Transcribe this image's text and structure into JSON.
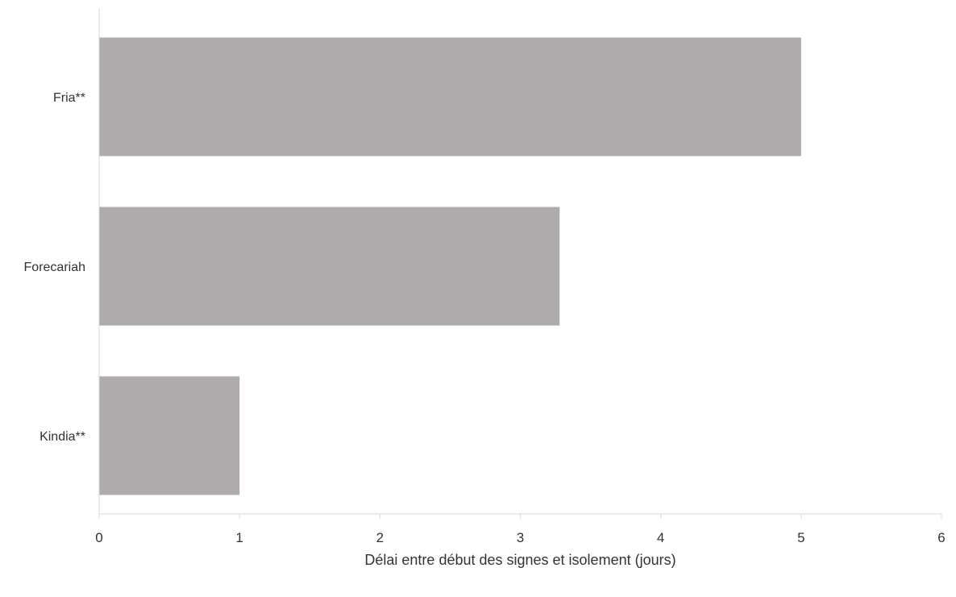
{
  "chart_data": {
    "type": "bar",
    "orientation": "horizontal",
    "title": "",
    "categories": [
      "Fria**",
      "Forecariah",
      "Kindia**"
    ],
    "values": [
      5,
      3.28,
      1
    ],
    "xlabel": "Délai entre début des signes et isolement (jours)",
    "ylabel": "",
    "xlim": [
      0,
      6
    ],
    "xticks": [
      "0",
      "1",
      "2",
      "3",
      "4",
      "5",
      "6"
    ],
    "grid": false,
    "legend": "none",
    "bar_color": "#AFABAB",
    "axis_color": "#D9D9D9"
  }
}
